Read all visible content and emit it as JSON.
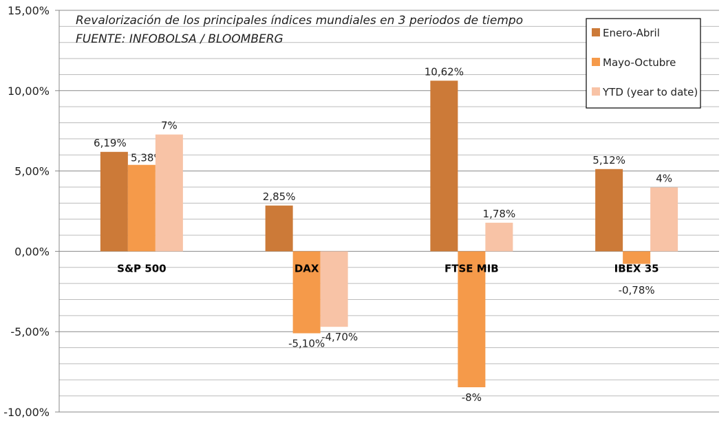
{
  "chart_data": {
    "type": "bar",
    "title": "Revalorización de los principales índices mundiales en 3 periodos de tiempo",
    "subtitle": "FUENTE: INFOBOLSA / BLOOMBERG",
    "xlabel": "",
    "ylabel": "",
    "ylim": [
      -10,
      15
    ],
    "y_ticks": [
      "15,00%",
      "10,00%",
      "5,00%",
      "0,00%",
      "-5,00%",
      "-10,00%"
    ],
    "grid": "horizontal, major every 5%, minor every 1%",
    "legend_position": "top-right",
    "categories": [
      "S&P 500",
      "DAX",
      "FTSE MIB",
      "IBEX 35"
    ],
    "series": [
      {
        "name": "Enero-Abril",
        "color": "#CC7A38",
        "values": [
          6.19,
          2.85,
          10.62,
          5.12
        ],
        "labels": [
          "6,19%",
          "2,85%",
          "10,62%",
          "5,12%"
        ]
      },
      {
        "name": "Mayo-Octubre",
        "color": "#F59A4A",
        "values": [
          5.38,
          -5.1,
          -8.46,
          -0.78
        ],
        "labels": [
          "5,38%",
          "-5,10%",
          "-8%",
          "-0,78%"
        ]
      },
      {
        "name": "YTD (year to date)",
        "color": "#F8C3A6",
        "values": [
          7.27,
          -4.7,
          1.78,
          3.98
        ],
        "labels": [
          "7%",
          "-4,70%",
          "1,78%",
          "4%"
        ]
      }
    ]
  }
}
